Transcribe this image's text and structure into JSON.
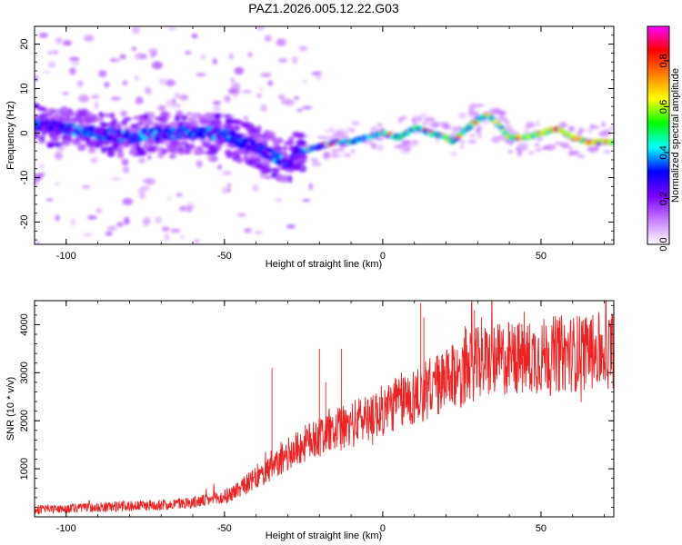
{
  "title": "PAZ1.2026.005.12.22.G03",
  "chart_data": [
    {
      "type": "heatmap",
      "xlabel": "Height of straight line (km)",
      "ylabel": "Frequency (Hz)",
      "xlim": [
        -110,
        73
      ],
      "ylim": [
        -25,
        24
      ],
      "x_ticks": [
        "-100",
        "-50",
        "0",
        "50"
      ],
      "x_tick_values": [
        -100,
        -50,
        0,
        50
      ],
      "y_ticks": [
        "-20",
        "-10",
        "0",
        "10",
        "20"
      ],
      "y_tick_values": [
        -20,
        -10,
        0,
        10,
        20
      ],
      "ridge": {
        "x": [
          -110,
          -100,
          -90,
          -80,
          -70,
          -60,
          -50,
          -45,
          -40,
          -35,
          -30,
          -27,
          -25,
          -20,
          -15,
          -10,
          -5,
          0,
          5,
          10,
          12,
          15,
          20,
          22,
          25,
          30,
          33,
          35,
          40,
          45,
          50,
          55,
          60,
          65,
          70,
          73
        ],
        "y": [
          2,
          1,
          0,
          -1,
          0,
          0,
          0,
          -2,
          -3,
          -5,
          -7,
          -4,
          -4,
          -3,
          -2,
          -2,
          -1,
          0,
          -1,
          1,
          1,
          0,
          -1,
          -2,
          0,
          3,
          4,
          3,
          -1,
          -1,
          0,
          1,
          -1,
          -2,
          -2,
          -2
        ]
      },
      "colorbar": {
        "label": "Normalized spectral amplitude",
        "range": [
          0.0,
          0.95
        ],
        "ticks": [
          "0.0",
          "0.2",
          "0.4",
          "0.6",
          "0.8"
        ],
        "tick_values": [
          0.0,
          0.2,
          0.4,
          0.6,
          0.8
        ],
        "colors": [
          "#ffffff",
          "#c77dff",
          "#7a00ff",
          "#0000ff",
          "#00ffff",
          "#00ff00",
          "#ffff00",
          "#ff8000",
          "#ff0000",
          "#ff00ff"
        ]
      }
    },
    {
      "type": "line",
      "xlabel": "Height of straight line (km)",
      "ylabel": "SNR (10 * v/v)",
      "xlim": [
        -110,
        73
      ],
      "ylim": [
        0,
        4500
      ],
      "x_ticks": [
        "-100",
        "-50",
        "0",
        "50"
      ],
      "x_tick_values": [
        -100,
        -50,
        0,
        50
      ],
      "y_ticks": [
        "1000",
        "2000",
        "3000",
        "4000"
      ],
      "y_tick_values": [
        1000,
        2000,
        3000,
        4000
      ],
      "line_color": "#ee2222",
      "trend": {
        "x": [
          -110,
          -90,
          -70,
          -60,
          -50,
          -45,
          -40,
          -35,
          -30,
          -25,
          -20,
          -15,
          -10,
          -5,
          0,
          5,
          10,
          15,
          20,
          25,
          30,
          35,
          40,
          45,
          50,
          55,
          60,
          65,
          70,
          73
        ],
        "y": [
          150,
          200,
          250,
          300,
          400,
          600,
          800,
          1000,
          1300,
          1500,
          1700,
          1800,
          1900,
          2100,
          2200,
          2400,
          2500,
          2700,
          2800,
          3000,
          3200,
          3250,
          3300,
          3300,
          3350,
          3400,
          3400,
          3450,
          3450,
          3500
        ]
      },
      "spikes": {
        "x": [
          -35,
          -20,
          -18,
          -13,
          12,
          13,
          28,
          29
        ],
        "y": [
          3100,
          3500,
          2800,
          3500,
          4450,
          4150,
          4450,
          4300
        ]
      }
    }
  ]
}
